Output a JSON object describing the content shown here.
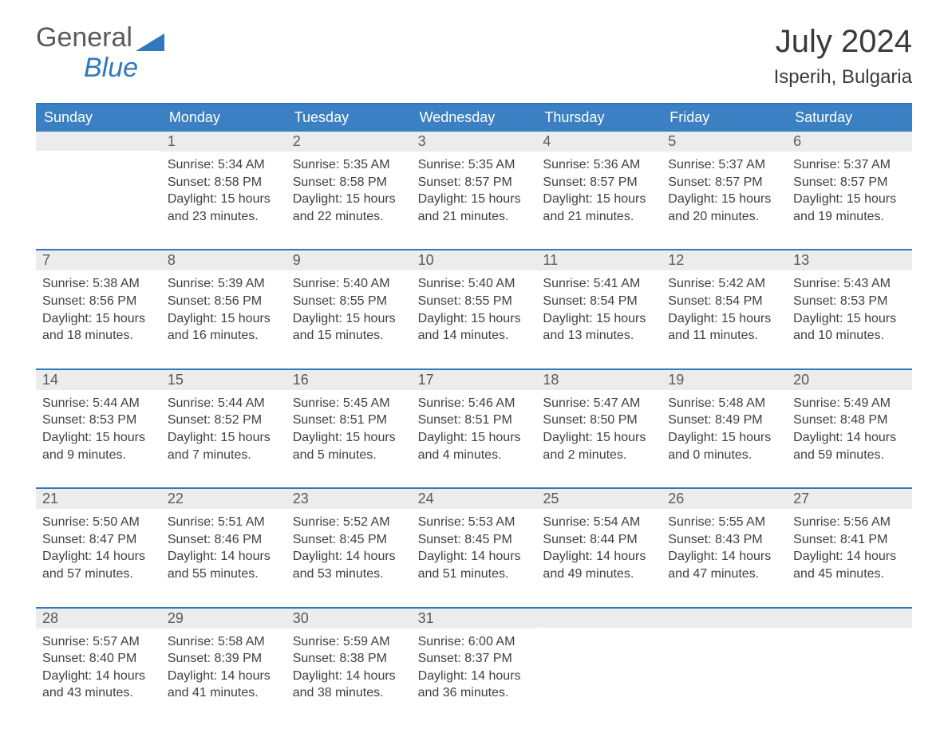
{
  "brand": {
    "word1": "General",
    "word2": "Blue",
    "logo_color": "#2e78bd",
    "text_color": "#5a5a5a"
  },
  "title": "July 2024",
  "location": "Isperih, Bulgaria",
  "colors": {
    "header_bg": "#3a80c2",
    "header_text": "#ffffff",
    "rule": "#2e78bd",
    "daynum_bg": "#ececec",
    "body_text": "#404040"
  },
  "dow": [
    "Sunday",
    "Monday",
    "Tuesday",
    "Wednesday",
    "Thursday",
    "Friday",
    "Saturday"
  ],
  "weeks": [
    [
      {
        "n": "",
        "sunrise": "",
        "sunset": "",
        "daylight": ""
      },
      {
        "n": "1",
        "sunrise": "5:34 AM",
        "sunset": "8:58 PM",
        "daylight": "15 hours and 23 minutes."
      },
      {
        "n": "2",
        "sunrise": "5:35 AM",
        "sunset": "8:58 PM",
        "daylight": "15 hours and 22 minutes."
      },
      {
        "n": "3",
        "sunrise": "5:35 AM",
        "sunset": "8:57 PM",
        "daylight": "15 hours and 21 minutes."
      },
      {
        "n": "4",
        "sunrise": "5:36 AM",
        "sunset": "8:57 PM",
        "daylight": "15 hours and 21 minutes."
      },
      {
        "n": "5",
        "sunrise": "5:37 AM",
        "sunset": "8:57 PM",
        "daylight": "15 hours and 20 minutes."
      },
      {
        "n": "6",
        "sunrise": "5:37 AM",
        "sunset": "8:57 PM",
        "daylight": "15 hours and 19 minutes."
      }
    ],
    [
      {
        "n": "7",
        "sunrise": "5:38 AM",
        "sunset": "8:56 PM",
        "daylight": "15 hours and 18 minutes."
      },
      {
        "n": "8",
        "sunrise": "5:39 AM",
        "sunset": "8:56 PM",
        "daylight": "15 hours and 16 minutes."
      },
      {
        "n": "9",
        "sunrise": "5:40 AM",
        "sunset": "8:55 PM",
        "daylight": "15 hours and 15 minutes."
      },
      {
        "n": "10",
        "sunrise": "5:40 AM",
        "sunset": "8:55 PM",
        "daylight": "15 hours and 14 minutes."
      },
      {
        "n": "11",
        "sunrise": "5:41 AM",
        "sunset": "8:54 PM",
        "daylight": "15 hours and 13 minutes."
      },
      {
        "n": "12",
        "sunrise": "5:42 AM",
        "sunset": "8:54 PM",
        "daylight": "15 hours and 11 minutes."
      },
      {
        "n": "13",
        "sunrise": "5:43 AM",
        "sunset": "8:53 PM",
        "daylight": "15 hours and 10 minutes."
      }
    ],
    [
      {
        "n": "14",
        "sunrise": "5:44 AM",
        "sunset": "8:53 PM",
        "daylight": "15 hours and 9 minutes."
      },
      {
        "n": "15",
        "sunrise": "5:44 AM",
        "sunset": "8:52 PM",
        "daylight": "15 hours and 7 minutes."
      },
      {
        "n": "16",
        "sunrise": "5:45 AM",
        "sunset": "8:51 PM",
        "daylight": "15 hours and 5 minutes."
      },
      {
        "n": "17",
        "sunrise": "5:46 AM",
        "sunset": "8:51 PM",
        "daylight": "15 hours and 4 minutes."
      },
      {
        "n": "18",
        "sunrise": "5:47 AM",
        "sunset": "8:50 PM",
        "daylight": "15 hours and 2 minutes."
      },
      {
        "n": "19",
        "sunrise": "5:48 AM",
        "sunset": "8:49 PM",
        "daylight": "15 hours and 0 minutes."
      },
      {
        "n": "20",
        "sunrise": "5:49 AM",
        "sunset": "8:48 PM",
        "daylight": "14 hours and 59 minutes."
      }
    ],
    [
      {
        "n": "21",
        "sunrise": "5:50 AM",
        "sunset": "8:47 PM",
        "daylight": "14 hours and 57 minutes."
      },
      {
        "n": "22",
        "sunrise": "5:51 AM",
        "sunset": "8:46 PM",
        "daylight": "14 hours and 55 minutes."
      },
      {
        "n": "23",
        "sunrise": "5:52 AM",
        "sunset": "8:45 PM",
        "daylight": "14 hours and 53 minutes."
      },
      {
        "n": "24",
        "sunrise": "5:53 AM",
        "sunset": "8:45 PM",
        "daylight": "14 hours and 51 minutes."
      },
      {
        "n": "25",
        "sunrise": "5:54 AM",
        "sunset": "8:44 PM",
        "daylight": "14 hours and 49 minutes."
      },
      {
        "n": "26",
        "sunrise": "5:55 AM",
        "sunset": "8:43 PM",
        "daylight": "14 hours and 47 minutes."
      },
      {
        "n": "27",
        "sunrise": "5:56 AM",
        "sunset": "8:41 PM",
        "daylight": "14 hours and 45 minutes."
      }
    ],
    [
      {
        "n": "28",
        "sunrise": "5:57 AM",
        "sunset": "8:40 PM",
        "daylight": "14 hours and 43 minutes."
      },
      {
        "n": "29",
        "sunrise": "5:58 AM",
        "sunset": "8:39 PM",
        "daylight": "14 hours and 41 minutes."
      },
      {
        "n": "30",
        "sunrise": "5:59 AM",
        "sunset": "8:38 PM",
        "daylight": "14 hours and 38 minutes."
      },
      {
        "n": "31",
        "sunrise": "6:00 AM",
        "sunset": "8:37 PM",
        "daylight": "14 hours and 36 minutes."
      },
      {
        "n": "",
        "sunrise": "",
        "sunset": "",
        "daylight": ""
      },
      {
        "n": "",
        "sunrise": "",
        "sunset": "",
        "daylight": ""
      },
      {
        "n": "",
        "sunrise": "",
        "sunset": "",
        "daylight": ""
      }
    ]
  ],
  "labels": {
    "sunrise": "Sunrise:",
    "sunset": "Sunset:",
    "daylight": "Daylight:"
  }
}
